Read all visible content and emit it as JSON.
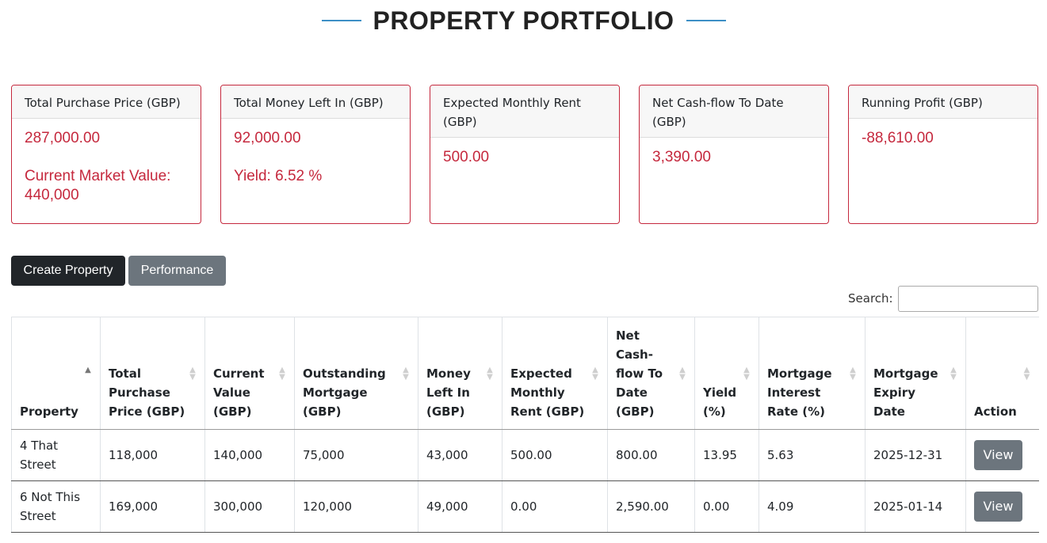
{
  "page": {
    "title": "PROPERTY PORTFOLIO",
    "accent_color": "#3d8fc6",
    "alert_color": "#c5283d"
  },
  "cards": [
    {
      "header": "Total Purchase Price (GBP)",
      "value": "287,000.00",
      "sub": "Current Market Value: 440,000"
    },
    {
      "header": "Total Money Left In (GBP)",
      "value": "92,000.00",
      "sub": "Yield: 6.52 %"
    },
    {
      "header": "Expected Monthly Rent (GBP)",
      "value": "500.00",
      "sub": ""
    },
    {
      "header": "Net Cash-flow To Date (GBP)",
      "value": "3,390.00",
      "sub": ""
    },
    {
      "header": "Running Profit (GBP)",
      "value": "-88,610.00",
      "sub": ""
    }
  ],
  "toolbar": {
    "create_label": "Create Property",
    "performance_label": "Performance"
  },
  "search": {
    "label": "Search:",
    "value": ""
  },
  "table": {
    "columns": [
      "Property",
      "Total Purchase Price (GBP)",
      "Current Value (GBP)",
      "Outstanding Mortgage (GBP)",
      "Money Left In (GBP)",
      "Expected Monthly Rent (GBP)",
      "Net Cash-flow To Date (GBP)",
      "Yield (%)",
      "Mortgage Interest Rate (%)",
      "Mortgage Expiry Date",
      "Action"
    ],
    "sorted_column": "Property",
    "rows": [
      {
        "property": "4 That Street",
        "total_purchase": "118,000",
        "current_value": "140,000",
        "outstanding_mortgage": "75,000",
        "money_left_in": "43,000",
        "expected_rent": "500.00",
        "net_cashflow": "800.00",
        "yield": "13.95",
        "interest_rate": "5.63",
        "expiry": "2025-12-31",
        "action": "View"
      },
      {
        "property": "6 Not This Street",
        "total_purchase": "169,000",
        "current_value": "300,000",
        "outstanding_mortgage": "120,000",
        "money_left_in": "49,000",
        "expected_rent": "0.00",
        "net_cashflow": "2,590.00",
        "yield": "0.00",
        "interest_rate": "4.09",
        "expiry": "2025-01-14",
        "action": "View"
      }
    ]
  }
}
